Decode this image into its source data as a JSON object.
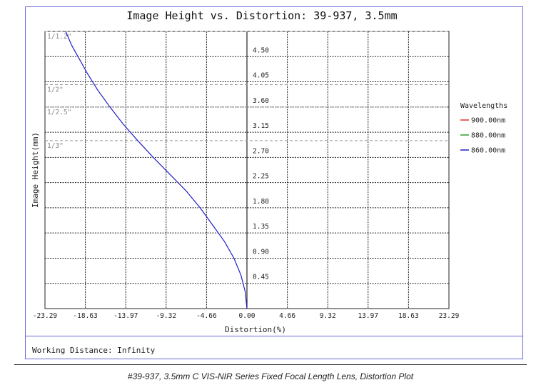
{
  "caption": "#39-937, 3.5mm C VIS-NIR Series Fixed Focal Length Lens, Distortion Plot",
  "working_distance": "Working Distance: Infinity",
  "chart_data": {
    "type": "line",
    "title": "Image Height vs. Distortion: 39-937, 3.5mm",
    "xlabel": "Distortion(%)",
    "ylabel": "Image Height(mm)",
    "xlim": [
      -23.29,
      23.29
    ],
    "ylim": [
      0,
      4.95
    ],
    "x_ticks": [
      "-23.29",
      "-18.63",
      "-13.97",
      "-9.32",
      "-4.66",
      "0.00",
      "4.66",
      "9.32",
      "13.97",
      "18.63",
      "23.29"
    ],
    "x_tick_values": [
      -23.29,
      -18.63,
      -13.97,
      -9.32,
      -4.66,
      0,
      4.66,
      9.32,
      13.97,
      18.63,
      23.29
    ],
    "y_ticks": [
      "0.45",
      "0.90",
      "1.35",
      "1.80",
      "2.25",
      "2.70",
      "3.15",
      "3.60",
      "4.05",
      "4.50"
    ],
    "y_tick_values": [
      0.45,
      0.9,
      1.35,
      1.8,
      2.25,
      2.7,
      3.15,
      3.6,
      4.05,
      4.5
    ],
    "grid": true,
    "sensor_markers": [
      {
        "label": "1/1.2\"",
        "y": 4.95
      },
      {
        "label": "1/2\"",
        "y": 4.0
      },
      {
        "label": "1/2.5\"",
        "y": 3.6
      },
      {
        "label": "1/3\"",
        "y": 3.0
      }
    ],
    "legend": {
      "title": "Wavelengths",
      "position": "right"
    },
    "series": [
      {
        "name": "900.00nm",
        "color": "#e03030",
        "x": [],
        "y": []
      },
      {
        "name": "880.00nm",
        "color": "#30a030",
        "x": [],
        "y": []
      },
      {
        "name": "860.00nm",
        "color": "#2020c8",
        "x": [
          0,
          -0.2,
          -0.7,
          -1.5,
          -2.6,
          -4.0,
          -5.4,
          -7.0,
          -8.9,
          -10.8,
          -12.6,
          -14.3,
          -15.8,
          -17.2,
          -18.4,
          -19.3,
          -20.2,
          -20.9
        ],
        "y": [
          0,
          0.3,
          0.6,
          0.9,
          1.2,
          1.5,
          1.8,
          2.1,
          2.4,
          2.7,
          3.0,
          3.3,
          3.6,
          3.9,
          4.2,
          4.45,
          4.7,
          4.95
        ]
      }
    ]
  }
}
